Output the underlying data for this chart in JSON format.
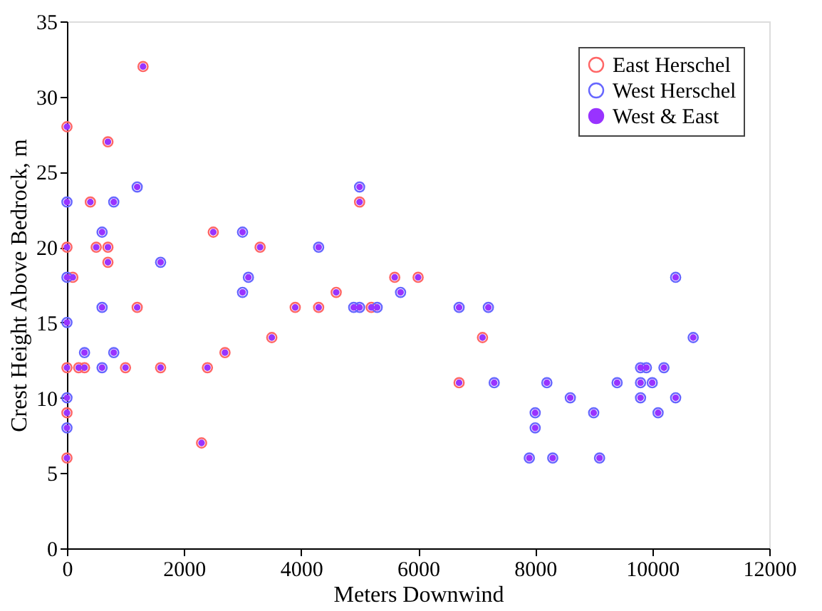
{
  "chart_data": {
    "type": "scatter",
    "xlabel": "Meters Downwind",
    "ylabel": "Crest Height Above Bedrock, m",
    "xlim": [
      0,
      12000
    ],
    "ylim": [
      0,
      35
    ],
    "xticks": [
      0,
      2000,
      4000,
      6000,
      8000,
      10000,
      12000
    ],
    "yticks": [
      0,
      5,
      10,
      15,
      20,
      25,
      30,
      35
    ],
    "grid": false,
    "legend": "top right",
    "marker": "circle",
    "series": [
      {
        "name": "East Herschel",
        "color": "#ff6666",
        "x": [
          0,
          0,
          0,
          0,
          0,
          100,
          200,
          300,
          400,
          500,
          700,
          700,
          700,
          1000,
          1200,
          1300,
          1600,
          2300,
          2400,
          2500,
          2700,
          3300,
          3500,
          3900,
          4300,
          4600,
          5000,
          5200,
          5600,
          6000,
          6700,
          7100
        ],
        "values": [
          28,
          20,
          12,
          9,
          6,
          18,
          12,
          12,
          23,
          20,
          27,
          20,
          19,
          12,
          16,
          32,
          12,
          7,
          12,
          21,
          13,
          20,
          14,
          16,
          16,
          17,
          23,
          16,
          18,
          18,
          11,
          14
        ]
      },
      {
        "name": "West Herschel",
        "color": "#6666ff",
        "x": [
          0,
          0,
          0,
          0,
          0,
          300,
          600,
          600,
          600,
          800,
          800,
          1200,
          1600,
          3000,
          3000,
          3100,
          4300,
          4900,
          5000,
          5000,
          5300,
          5700,
          6700,
          7200,
          7300,
          7900,
          8000,
          8000,
          8200,
          8300,
          8600,
          9000,
          9100,
          9400,
          9800,
          9800,
          9800,
          9900,
          10000,
          10100,
          10200,
          10400,
          10400,
          10700
        ],
        "values": [
          23,
          18,
          15,
          10,
          8,
          13,
          21,
          16,
          12,
          23,
          13,
          24,
          19,
          21,
          17,
          18,
          20,
          16,
          24,
          16,
          16,
          17,
          16,
          16,
          11,
          6,
          9,
          8,
          11,
          6,
          10,
          9,
          6,
          11,
          12,
          11,
          10,
          12,
          11,
          9,
          12,
          18,
          10,
          14
        ]
      },
      {
        "name": "West & East",
        "color": "#9933ff",
        "x": [
          0,
          0,
          0,
          0,
          0,
          100,
          200,
          300,
          400,
          500,
          700,
          700,
          700,
          1000,
          1200,
          1300,
          1600,
          2300,
          2400,
          2500,
          2700,
          3300,
          3500,
          3900,
          4300,
          4600,
          5000,
          5200,
          5600,
          6000,
          6700,
          7100,
          0,
          0,
          0,
          0,
          0,
          300,
          600,
          600,
          600,
          800,
          800,
          1200,
          1600,
          3000,
          3000,
          3100,
          4300,
          4900,
          5000,
          5000,
          5300,
          5700,
          6700,
          7200,
          7300,
          7900,
          8000,
          8000,
          8200,
          8300,
          8600,
          9000,
          9100,
          9400,
          9800,
          9800,
          9800,
          9900,
          10000,
          10100,
          10200,
          10400,
          10400,
          10700
        ],
        "values": [
          28,
          20,
          12,
          9,
          6,
          18,
          12,
          12,
          23,
          20,
          27,
          20,
          19,
          12,
          16,
          32,
          12,
          7,
          12,
          21,
          13,
          20,
          14,
          16,
          16,
          17,
          23,
          16,
          18,
          18,
          11,
          14,
          23,
          18,
          15,
          10,
          8,
          13,
          21,
          16,
          12,
          23,
          13,
          24,
          19,
          21,
          17,
          18,
          20,
          16,
          24,
          16,
          16,
          17,
          16,
          16,
          11,
          6,
          9,
          8,
          11,
          6,
          10,
          9,
          6,
          11,
          12,
          11,
          10,
          12,
          11,
          9,
          12,
          18,
          10,
          14
        ]
      }
    ]
  }
}
